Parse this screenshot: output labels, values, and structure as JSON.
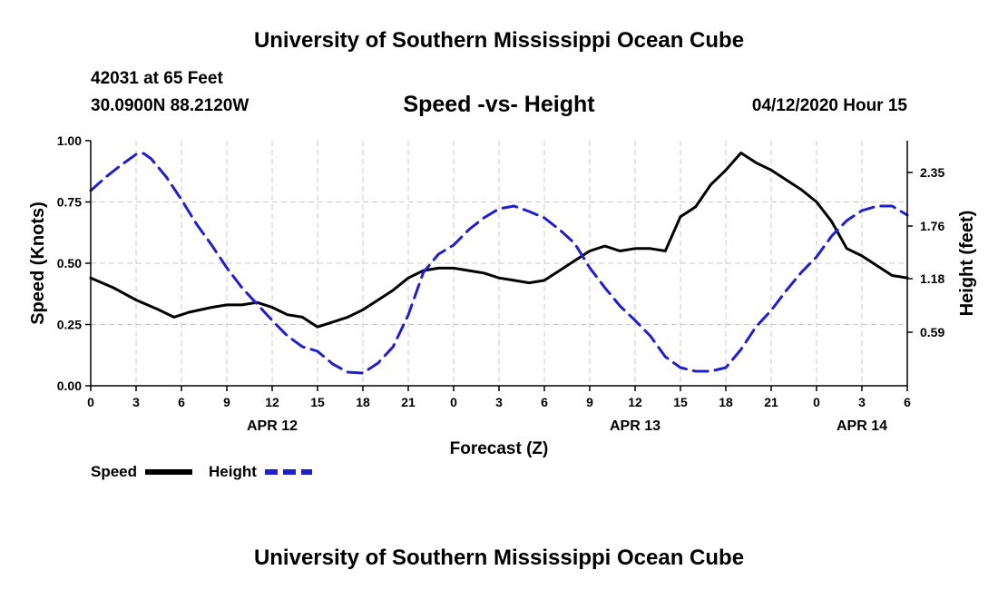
{
  "header": {
    "top_title": "University of Southern Mississippi Ocean Cube",
    "station_line": "42031 at 65 Feet",
    "coords_line": "30.0900N 88.2120W",
    "date_line": "04/12/2020 Hour 15"
  },
  "footer": {
    "bottom_title": "University of Southern Mississippi Ocean Cube"
  },
  "chart_data": {
    "type": "line",
    "title": "Speed -vs- Height",
    "xlabel": "Forecast (Z)",
    "ylabel": "Speed (Knots)",
    "y2label": "Height (feet)",
    "x_range": [
      0,
      54
    ],
    "x_ticks": [
      {
        "x": 0,
        "label": "0"
      },
      {
        "x": 3,
        "label": "3"
      },
      {
        "x": 6,
        "label": "6"
      },
      {
        "x": 9,
        "label": "9"
      },
      {
        "x": 12,
        "label": "12"
      },
      {
        "x": 15,
        "label": "15"
      },
      {
        "x": 18,
        "label": "18"
      },
      {
        "x": 21,
        "label": "21"
      },
      {
        "x": 24,
        "label": "0"
      },
      {
        "x": 27,
        "label": "3"
      },
      {
        "x": 30,
        "label": "6"
      },
      {
        "x": 33,
        "label": "9"
      },
      {
        "x": 36,
        "label": "12"
      },
      {
        "x": 39,
        "label": "15"
      },
      {
        "x": 42,
        "label": "18"
      },
      {
        "x": 45,
        "label": "21"
      },
      {
        "x": 48,
        "label": "0"
      },
      {
        "x": 51,
        "label": "3"
      },
      {
        "x": 54,
        "label": "6"
      }
    ],
    "date_labels": [
      {
        "x": 12,
        "label": "APR 12"
      },
      {
        "x": 36,
        "label": "APR 13"
      },
      {
        "x": 51,
        "label": "APR 14"
      }
    ],
    "ylim": [
      0,
      1
    ],
    "y_ticks": [
      "0.00",
      "0.25",
      "0.50",
      "0.75",
      "1.00"
    ],
    "y2lim": [
      0,
      2.7
    ],
    "y2_ticks": [
      {
        "value": 0.59,
        "label": "0.59"
      },
      {
        "value": 1.18,
        "label": "1.18"
      },
      {
        "value": 1.76,
        "label": "1.76"
      },
      {
        "value": 2.35,
        "label": "2.35"
      }
    ],
    "grid": true,
    "series": [
      {
        "name": "Speed",
        "axis": "left",
        "color": "#000000",
        "style": "solid",
        "x": [
          0,
          1.5,
          3,
          4.5,
          5.5,
          6.5,
          8,
          9,
          10,
          11,
          12,
          13,
          14,
          15,
          16,
          17,
          18,
          19,
          20,
          21,
          22,
          23,
          24,
          25,
          26,
          27,
          28,
          29,
          30,
          31,
          32,
          33,
          34,
          35,
          36,
          37,
          38,
          39,
          40,
          41,
          42,
          43,
          44,
          45,
          46,
          47,
          48,
          49,
          50,
          51,
          52,
          53,
          54
        ],
        "values": [
          0.44,
          0.4,
          0.35,
          0.31,
          0.28,
          0.3,
          0.32,
          0.33,
          0.33,
          0.34,
          0.32,
          0.29,
          0.28,
          0.24,
          0.26,
          0.28,
          0.31,
          0.35,
          0.39,
          0.44,
          0.47,
          0.48,
          0.48,
          0.47,
          0.46,
          0.44,
          0.43,
          0.42,
          0.43,
          0.47,
          0.51,
          0.55,
          0.57,
          0.55,
          0.56,
          0.56,
          0.55,
          0.69,
          0.73,
          0.82,
          0.88,
          0.95,
          0.91,
          0.88,
          0.84,
          0.8,
          0.75,
          0.67,
          0.56,
          0.53,
          0.49,
          0.45,
          0.44
        ]
      },
      {
        "name": "Height",
        "axis": "right",
        "color": "#1f1fcc",
        "style": "dashed",
        "x": [
          0,
          1,
          2,
          3,
          3.5,
          4,
          5,
          6,
          7,
          8,
          9,
          10,
          11,
          12,
          13,
          14,
          15,
          16,
          17,
          18,
          19,
          20,
          21,
          22,
          23,
          24,
          25,
          26,
          27,
          28,
          29,
          30,
          31,
          32,
          33,
          34,
          35,
          36,
          37,
          38,
          39,
          40,
          41,
          42,
          43,
          44,
          45,
          46,
          47,
          48,
          49,
          50,
          51,
          52,
          53,
          54
        ],
        "values": [
          2.15,
          2.3,
          2.43,
          2.55,
          2.56,
          2.5,
          2.3,
          2.05,
          1.78,
          1.55,
          1.3,
          1.08,
          0.9,
          0.72,
          0.55,
          0.43,
          0.38,
          0.24,
          0.15,
          0.14,
          0.25,
          0.43,
          0.78,
          1.25,
          1.45,
          1.55,
          1.72,
          1.85,
          1.95,
          1.98,
          1.92,
          1.85,
          1.72,
          1.57,
          1.3,
          1.08,
          0.88,
          0.72,
          0.55,
          0.32,
          0.2,
          0.16,
          0.16,
          0.2,
          0.4,
          0.65,
          0.83,
          1.05,
          1.25,
          1.42,
          1.65,
          1.82,
          1.93,
          1.98,
          1.98,
          1.88
        ]
      }
    ]
  }
}
